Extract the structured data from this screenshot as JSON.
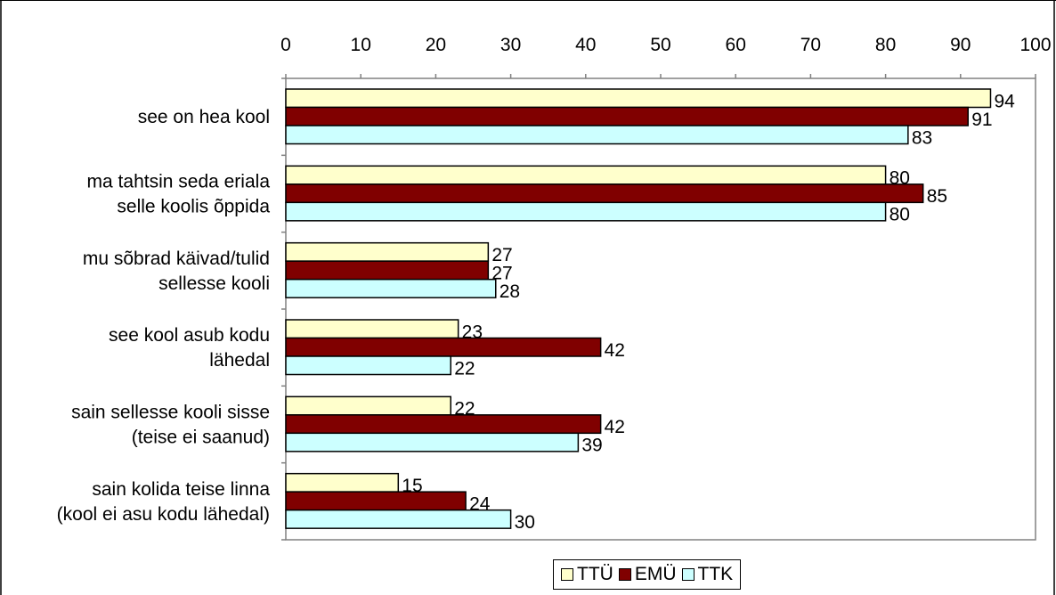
{
  "chart_data": {
    "type": "bar",
    "orientation": "horizontal",
    "categories": [
      "see on hea kool",
      "ma tahtsin seda eriala selle koolis õppida",
      "mu sõbrad käivad/tulid sellesse kooli",
      "see kool asub kodu lähedal",
      "sain sellesse kooli sisse (teise ei saanud)",
      "sain kolida teise linna (kool ei asu kodu lähedal)"
    ],
    "category_lines": [
      [
        "see on hea kool"
      ],
      [
        "ma tahtsin seda eriala",
        "selle koolis õppida"
      ],
      [
        "mu sõbrad käivad/tulid",
        "sellesse kooli"
      ],
      [
        "see kool asub kodu",
        "lähedal"
      ],
      [
        "sain sellesse kooli sisse",
        "(teise ei saanud)"
      ],
      [
        "sain kolida teise linna",
        "(kool ei asu kodu lähedal)"
      ]
    ],
    "series": [
      {
        "name": "TTÜ",
        "color": "#FFFFCC",
        "values": [
          94,
          80,
          27,
          23,
          22,
          15
        ]
      },
      {
        "name": "EMÜ",
        "color": "#800000",
        "values": [
          91,
          85,
          27,
          42,
          42,
          24
        ]
      },
      {
        "name": "TTK",
        "color": "#CCFFFF",
        "values": [
          83,
          80,
          28,
          22,
          39,
          30
        ]
      }
    ],
    "xlim": [
      0,
      100
    ],
    "xticks": [
      0,
      10,
      20,
      30,
      40,
      50,
      60,
      70,
      80,
      90,
      100
    ],
    "axis_position": "top",
    "grid": false,
    "legend_position": "bottom",
    "data_labels": true,
    "title": "",
    "xlabel": "",
    "ylabel": ""
  }
}
